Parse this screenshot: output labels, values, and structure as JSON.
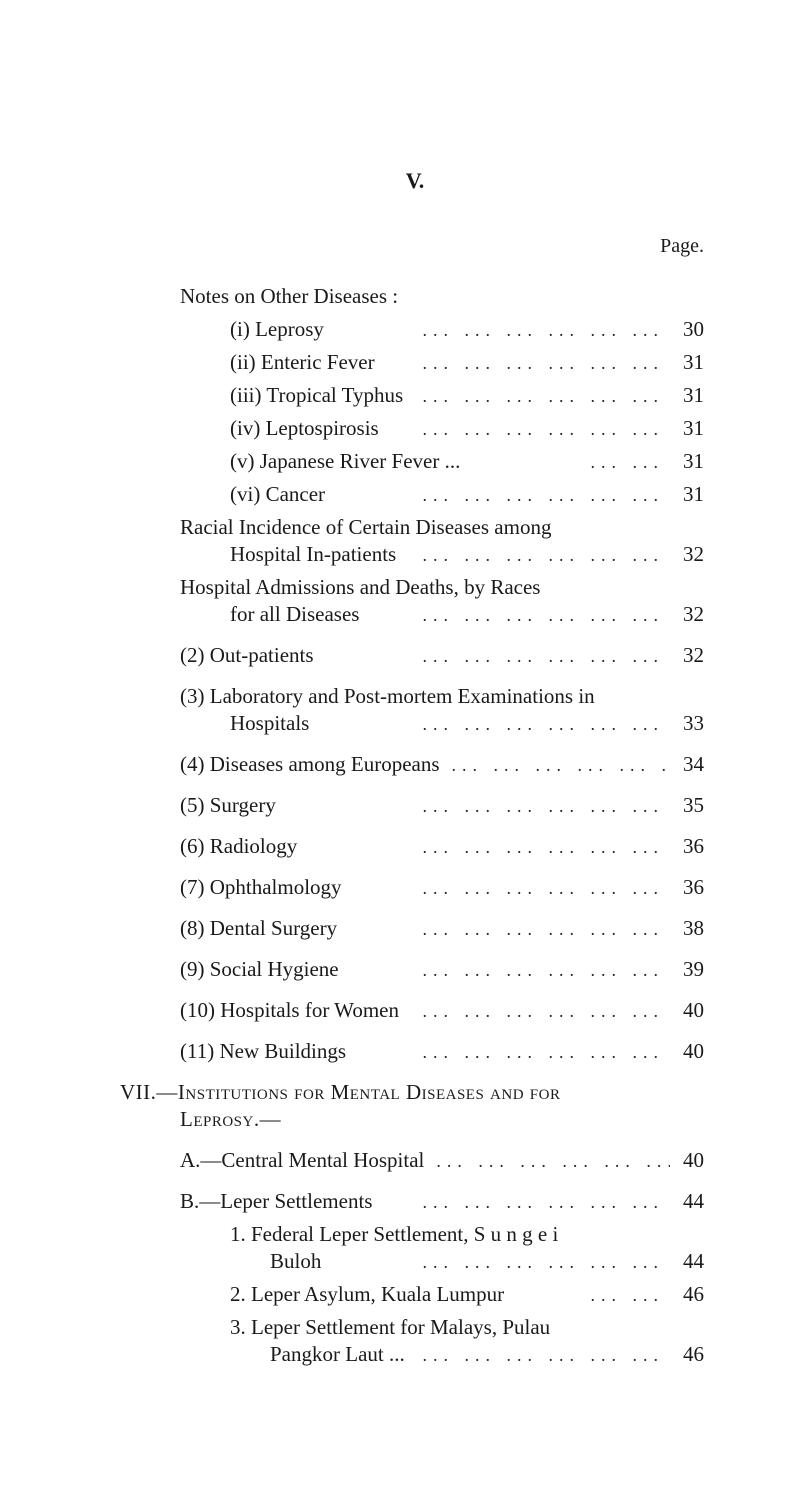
{
  "page_roman": "V.",
  "page_label": "Page.",
  "leader_dots": "...   ...   ...   ...   ...   ...",
  "leader_dots_short": "...   ...",
  "entries": {
    "notes_heading": "Notes on Other Diseases :",
    "i": {
      "label": "(i) Leprosy",
      "page": "30"
    },
    "ii": {
      "label": "(ii) Enteric Fever",
      "page": "31"
    },
    "iii": {
      "label": "(iii) Tropical Typhus",
      "page": "31"
    },
    "iv": {
      "label": "(iv) Leptospirosis",
      "page": "31"
    },
    "v": {
      "label": "(v) Japanese River Fever ...",
      "page": "31"
    },
    "vi": {
      "label": "(vi) Cancer",
      "page": "31"
    },
    "racial1": "Racial Incidence of Certain Diseases among",
    "racial2": {
      "label": "Hospital In-patients",
      "page": "32"
    },
    "hosp1": "Hospital Admissions and Deaths, by Races",
    "hosp2": {
      "label": "for all Diseases",
      "page": "32"
    },
    "e2": {
      "label": "(2) Out-patients",
      "page": "32"
    },
    "e3a": "(3) Laboratory and Post-mortem Examinations in",
    "e3b": {
      "label": "Hospitals",
      "page": "33"
    },
    "e4": {
      "label": "(4) Diseases among Europeans",
      "page": "34"
    },
    "e5": {
      "label": "(5) Surgery",
      "page": "35"
    },
    "e6": {
      "label": "(6) Radiology",
      "page": "36"
    },
    "e7": {
      "label": "(7) Ophthalmology",
      "page": "36"
    },
    "e8": {
      "label": "(8) Dental Surgery",
      "page": "38"
    },
    "e9": {
      "label": "(9) Social Hygiene",
      "page": "39"
    },
    "e10": {
      "label": "(10) Hospitals for Women",
      "page": "40"
    },
    "e11": {
      "label": "(11) New Buildings",
      "page": "40"
    },
    "vii1": "VII.—Institutions for Mental Diseases and for",
    "vii2": "Leprosy.—",
    "A": {
      "label": "A.—Central Mental Hospital",
      "page": "40"
    },
    "B": {
      "label": "B.—Leper Settlements",
      "page": "44"
    },
    "b1a": "1. Federal Leper Settlement, S u n g e i",
    "b1b": {
      "label": "Buloh",
      "page": "44"
    },
    "b2": {
      "label": "2. Leper Asylum, Kuala Lumpur",
      "page": "46"
    },
    "b3a": "3. Leper Settlement for Malays, Pulau",
    "b3b": {
      "label": "Pangkor Laut ...",
      "page": "46"
    }
  }
}
